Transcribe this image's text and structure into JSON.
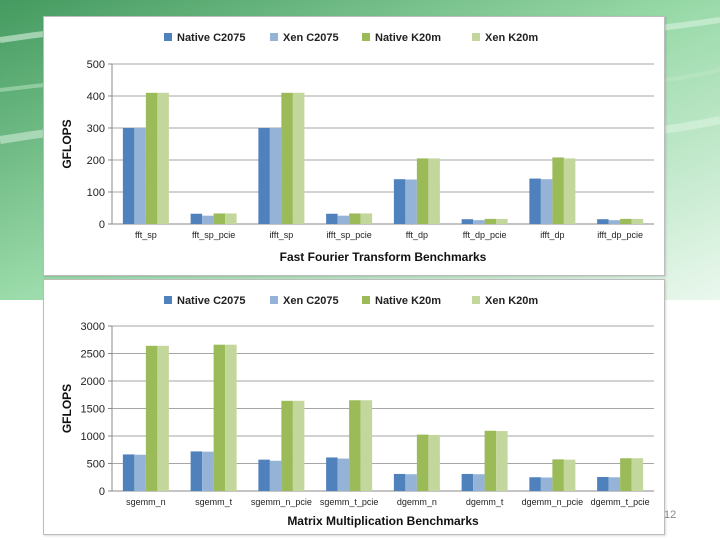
{
  "slide": {
    "number": "12"
  },
  "colors": {
    "Native C2075": "#4f81bd",
    "Xen C2075": "#95b3d7",
    "Native K20m": "#9bbb59",
    "Xen K20m": "#c3d69b"
  },
  "chart_data": [
    {
      "type": "bar",
      "title": "",
      "xlabel": "Fast Fourier Transform Benchmarks",
      "ylabel": "GFLOPS",
      "ylim": [
        0,
        500
      ],
      "yticks": [
        0,
        100,
        200,
        300,
        400,
        500
      ],
      "grid": true,
      "legend": "top",
      "categories": [
        "fft_sp",
        "fft_sp_pcie",
        "ifft_sp",
        "ifft_sp_pcie",
        "fft_dp",
        "fft_dp_pcie",
        "ifft_dp",
        "ifft_dp_pcie"
      ],
      "series": [
        {
          "name": "Native C2075",
          "values": [
            300,
            32,
            300,
            32,
            140,
            15,
            142,
            15
          ]
        },
        {
          "name": "Xen C2075",
          "values": [
            300,
            26,
            300,
            26,
            139,
            12,
            140,
            12
          ]
        },
        {
          "name": "Native K20m",
          "values": [
            410,
            33,
            410,
            33,
            205,
            16,
            208,
            16
          ]
        },
        {
          "name": "Xen K20m",
          "values": [
            410,
            33,
            410,
            33,
            205,
            16,
            205,
            16
          ]
        }
      ]
    },
    {
      "type": "bar",
      "title": "",
      "xlabel": "Matrix Multiplication Benchmarks",
      "ylabel": "GFLOPS",
      "ylim": [
        0,
        3000
      ],
      "yticks": [
        0,
        500,
        1000,
        1500,
        2000,
        2500,
        3000
      ],
      "grid": true,
      "legend": "top",
      "categories": [
        "sgemm_n",
        "sgemm_t",
        "sgemm_n_pcie",
        "sgemm_t_pcie",
        "dgemm_n",
        "dgemm_t",
        "dgemm_n_pcie",
        "dgemm_t_pcie"
      ],
      "series": [
        {
          "name": "Native C2075",
          "values": [
            665,
            720,
            570,
            610,
            310,
            310,
            250,
            255
          ]
        },
        {
          "name": "Xen C2075",
          "values": [
            660,
            715,
            550,
            590,
            305,
            305,
            245,
            250
          ]
        },
        {
          "name": "Native K20m",
          "values": [
            2640,
            2660,
            1640,
            1650,
            1025,
            1095,
            575,
            595
          ]
        },
        {
          "name": "Xen K20m",
          "values": [
            2640,
            2660,
            1640,
            1650,
            1020,
            1090,
            570,
            595
          ]
        }
      ]
    }
  ]
}
